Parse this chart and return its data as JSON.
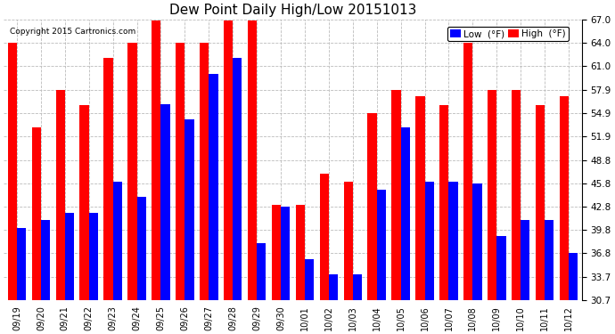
{
  "title": "Dew Point Daily High/Low 20151013",
  "copyright": "Copyright 2015 Cartronics.com",
  "legend_low": "Low  (°F)",
  "legend_high": "High  (°F)",
  "low_color": "#0000ff",
  "high_color": "#ff0000",
  "background_color": "#ffffff",
  "plot_bg_color": "#ffffff",
  "grid_color": "#bbbbbb",
  "ylim": [
    30.7,
    67.0
  ],
  "yticks": [
    30.7,
    33.7,
    36.8,
    39.8,
    42.8,
    45.8,
    48.8,
    51.9,
    54.9,
    57.9,
    61.0,
    64.0,
    67.0
  ],
  "categories": [
    "09/19",
    "09/20",
    "09/21",
    "09/22",
    "09/23",
    "09/24",
    "09/25",
    "09/26",
    "09/27",
    "09/28",
    "09/29",
    "09/30",
    "10/01",
    "10/02",
    "10/03",
    "10/04",
    "10/05",
    "10/06",
    "10/07",
    "10/08",
    "10/09",
    "10/10",
    "10/11",
    "10/12"
  ],
  "high_values": [
    64.0,
    53.0,
    57.9,
    55.9,
    62.0,
    64.0,
    66.9,
    64.0,
    64.0,
    66.9,
    66.9,
    43.0,
    43.0,
    47.0,
    46.0,
    54.9,
    57.9,
    57.0,
    55.9,
    64.0,
    57.9,
    57.9,
    55.9,
    57.0
  ],
  "low_values": [
    40.0,
    41.0,
    42.0,
    42.0,
    46.0,
    44.0,
    56.0,
    54.0,
    59.9,
    62.0,
    38.0,
    42.8,
    36.0,
    34.0,
    34.0,
    45.0,
    53.0,
    46.0,
    46.0,
    45.8,
    39.0,
    41.0,
    41.0,
    36.8
  ],
  "ymin": 30.7,
  "figsize": [
    6.9,
    3.75
  ],
  "dpi": 100
}
